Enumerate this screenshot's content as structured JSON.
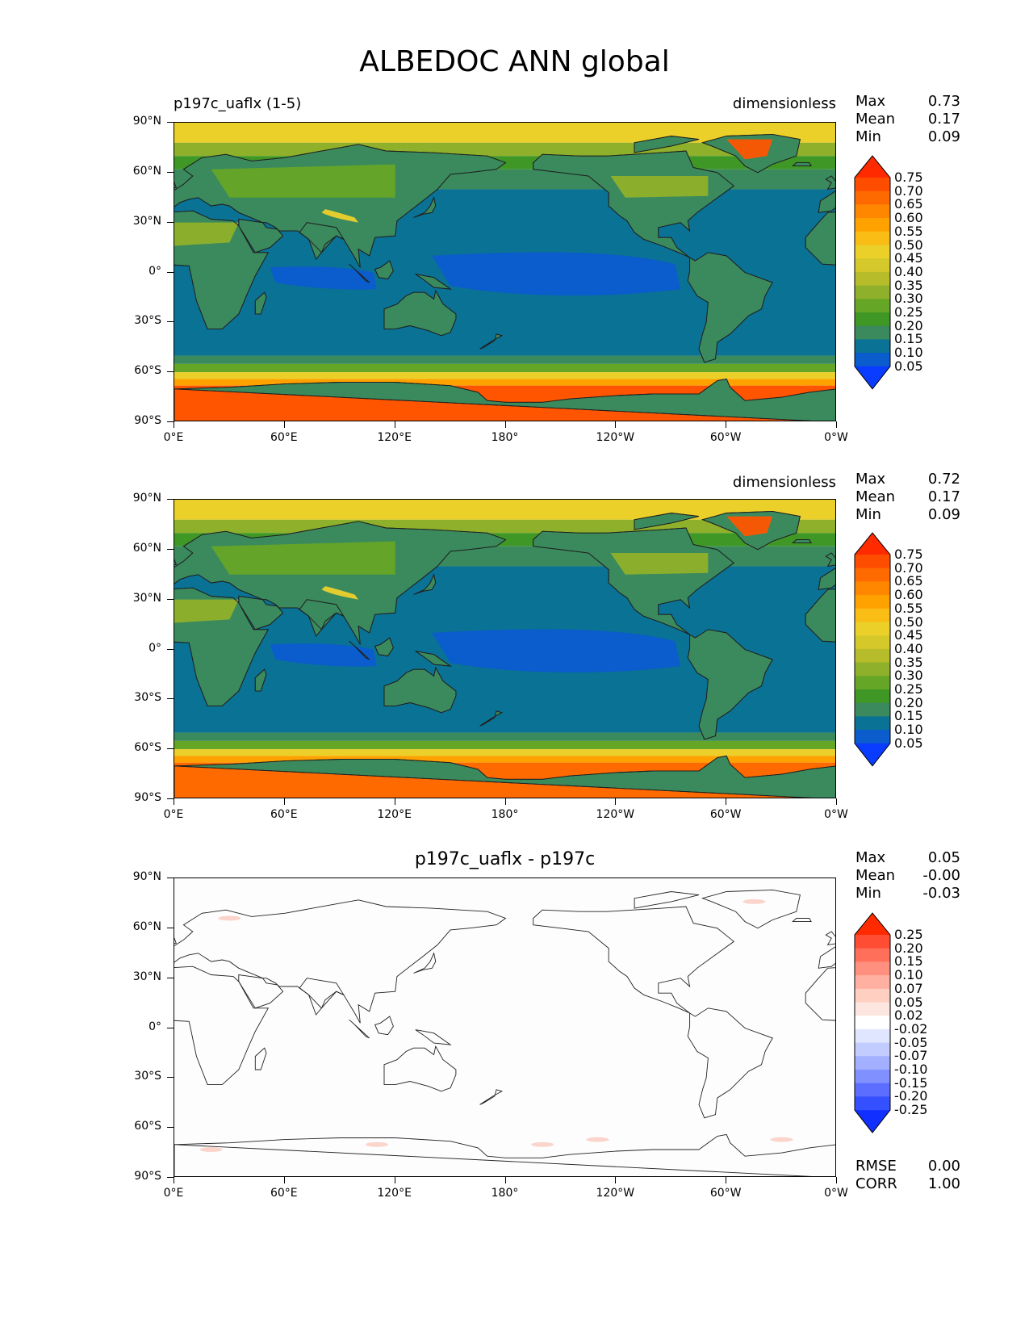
{
  "figure_title": "ALBEDOC ANN global",
  "lat_ticks": [
    "90°N",
    "60°N",
    "30°N",
    "0°",
    "30°S",
    "60°S",
    "90°S"
  ],
  "lon_ticks": [
    "0°E",
    "60°E",
    "120°E",
    "180°",
    "120°W",
    "60°W",
    "0°W"
  ],
  "panels": [
    {
      "left_title": "p197c_uaflx (1-5)",
      "right_title": "dimensionless",
      "center_title": "",
      "stats": [
        {
          "label": "Max",
          "value": "0.73"
        },
        {
          "label": "Mean",
          "value": "0.17"
        },
        {
          "label": "Min",
          "value": "0.09"
        }
      ],
      "colorbar": {
        "levels": [
          "0.75",
          "0.70",
          "0.65",
          "0.60",
          "0.55",
          "0.50",
          "0.45",
          "0.40",
          "0.35",
          "0.30",
          "0.25",
          "0.20",
          "0.15",
          "0.10",
          "0.05"
        ],
        "colors": [
          "#ff2a00",
          "#ff4d00",
          "#ff6a00",
          "#ff8700",
          "#ffa200",
          "#f9bd16",
          "#ecd02a",
          "#d4c82a",
          "#b6bc2a",
          "#8fb02a",
          "#66a626",
          "#3f9726",
          "#3a8a5e",
          "#0a7295",
          "#0b5ccc",
          "#0a3cff"
        ]
      }
    },
    {
      "left_title": "",
      "right_title": "dimensionless",
      "center_title": "",
      "stats": [
        {
          "label": "Max",
          "value": "0.72"
        },
        {
          "label": "Mean",
          "value": "0.17"
        },
        {
          "label": "Min",
          "value": "0.09"
        }
      ],
      "colorbar": {
        "levels": [
          "0.75",
          "0.70",
          "0.65",
          "0.60",
          "0.55",
          "0.50",
          "0.45",
          "0.40",
          "0.35",
          "0.30",
          "0.25",
          "0.20",
          "0.15",
          "0.10",
          "0.05"
        ],
        "colors": [
          "#ff2a00",
          "#ff4d00",
          "#ff6a00",
          "#ff8700",
          "#ffa200",
          "#f9bd16",
          "#ecd02a",
          "#d4c82a",
          "#b6bc2a",
          "#8fb02a",
          "#66a626",
          "#3f9726",
          "#3a8a5e",
          "#0a7295",
          "#0b5ccc",
          "#0a3cff"
        ]
      }
    },
    {
      "left_title": "",
      "right_title": "",
      "center_title": "p197c_uaflx - p197c",
      "stats": [
        {
          "label": "Max",
          "value": "0.05"
        },
        {
          "label": "Mean",
          "value": "-0.00"
        },
        {
          "label": "Min",
          "value": "-0.03"
        }
      ],
      "bottom_stats": [
        {
          "label": "RMSE",
          "value": "0.00"
        },
        {
          "label": "CORR",
          "value": "1.00"
        }
      ],
      "colorbar": {
        "levels": [
          "0.25",
          "0.20",
          "0.15",
          "0.10",
          "0.07",
          "0.05",
          "0.02",
          "-0.02",
          "-0.05",
          "-0.07",
          "-0.10",
          "-0.15",
          "-0.20",
          "-0.25"
        ],
        "colors": [
          "#ff2a00",
          "#ff4d33",
          "#ff6f5a",
          "#ff9080",
          "#ffb0a0",
          "#ffcfc2",
          "#fde6df",
          "#ffffff",
          "#e0e6ff",
          "#c3ccff",
          "#a3b0ff",
          "#8090ff",
          "#5b6eff",
          "#3550ff",
          "#1130ff"
        ]
      }
    }
  ]
}
